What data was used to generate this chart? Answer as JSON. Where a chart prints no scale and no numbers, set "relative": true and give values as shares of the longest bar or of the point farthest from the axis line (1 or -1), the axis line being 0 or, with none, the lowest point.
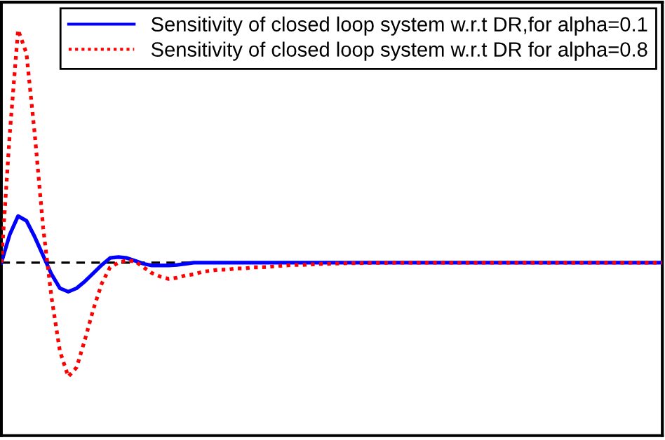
{
  "chart_data": {
    "type": "line",
    "relative": true,
    "categories": [
      null,
      null,
      null,
      null,
      null,
      null,
      null,
      null,
      null,
      null,
      null,
      null,
      null,
      null,
      null,
      null,
      null,
      null,
      null,
      null,
      null,
      null,
      null,
      null,
      null,
      null,
      null,
      null,
      null,
      null,
      null,
      null,
      null,
      null,
      null,
      null,
      null,
      null,
      null,
      null,
      null,
      null,
      null,
      null,
      null,
      null,
      null,
      null,
      null,
      null,
      null,
      null,
      null,
      null,
      null,
      null,
      null,
      null,
      null,
      null,
      null,
      null,
      null,
      null,
      null,
      null,
      null,
      null,
      null,
      null,
      null,
      null,
      null,
      null,
      null,
      null,
      null,
      null,
      null,
      null
    ],
    "series": [
      {
        "name": "Sensitivity of closed loop system w.r.t DR,for alpha=0.1",
        "color": "#0000ff",
        "line_style": "solid",
        "values": [
          0,
          0.12,
          0.2,
          0.18,
          0.11,
          0.03,
          -0.05,
          -0.11,
          -0.125,
          -0.11,
          -0.08,
          -0.045,
          -0.01,
          0.02,
          0.024,
          0.02,
          0.008,
          -0.005,
          -0.012,
          -0.012,
          -0.012,
          -0.01,
          -0.005,
          0,
          0,
          0,
          0,
          0,
          0,
          0,
          0,
          0,
          0,
          0,
          0,
          0,
          0,
          0,
          0,
          0,
          0,
          0,
          0,
          0,
          0,
          0,
          0,
          0,
          0,
          0,
          0,
          0,
          0,
          0,
          0,
          0,
          0,
          0,
          0,
          0,
          0,
          0,
          0,
          0,
          0,
          0,
          0,
          0,
          0,
          0,
          0,
          0,
          0,
          0,
          0,
          0,
          0,
          0,
          0,
          0
        ]
      },
      {
        "name": "Sensitivity of closed loop system w.r.t DR for alpha=0.8",
        "color": "#ff0000",
        "line_style": "dotted",
        "values": [
          0,
          0.55,
          1.0,
          0.9,
          0.55,
          0.15,
          -0.15,
          -0.38,
          -0.49,
          -0.45,
          -0.33,
          -0.2,
          -0.09,
          -0.02,
          0.0,
          0.01,
          0.005,
          -0.02,
          -0.045,
          -0.06,
          -0.07,
          -0.065,
          -0.055,
          -0.05,
          -0.04,
          -0.035,
          -0.03,
          -0.03,
          -0.025,
          -0.025,
          -0.02,
          -0.02,
          -0.018,
          -0.015,
          -0.012,
          -0.01,
          -0.01,
          -0.008,
          -0.006,
          -0.005,
          -0.004,
          -0.003,
          -0.002,
          -0.002,
          -0.001,
          -0.001,
          -0.001,
          0,
          0,
          0,
          0,
          0,
          0,
          0,
          0,
          0,
          0,
          0,
          0,
          0,
          0,
          0,
          0,
          0,
          0,
          0,
          0,
          0,
          0,
          0,
          0,
          0,
          0,
          0,
          0,
          0,
          0,
          0,
          0,
          0
        ]
      }
    ],
    "ref_lines": [
      {
        "axis": "y",
        "value": 0,
        "color": "#000000",
        "line_style": "dashed"
      }
    ],
    "legend": "top right"
  }
}
